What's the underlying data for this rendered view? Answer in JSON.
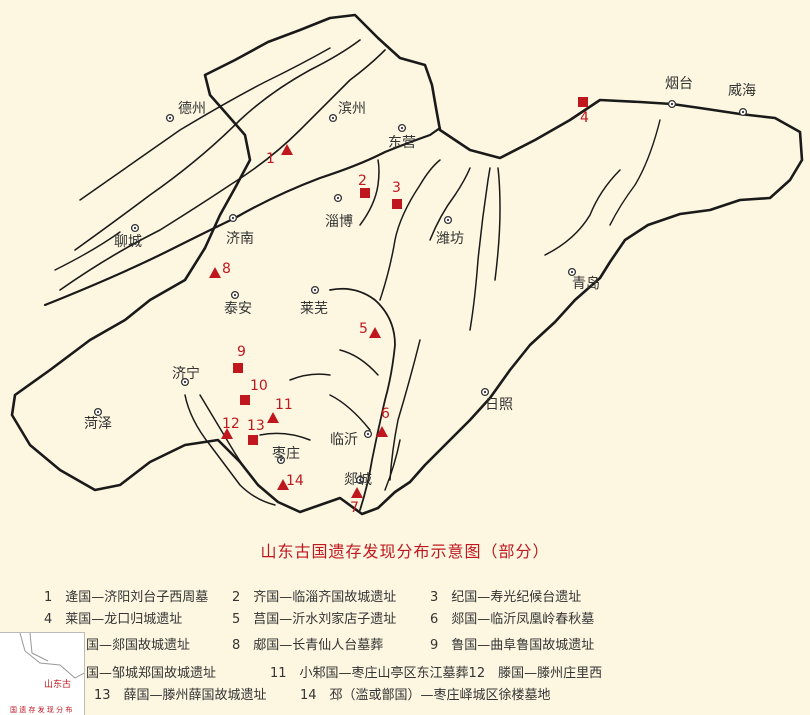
{
  "map": {
    "cities": [
      {
        "id": "dezhou",
        "name": "德州"
      },
      {
        "id": "binzhou",
        "name": "滨州"
      },
      {
        "id": "dongying",
        "name": "东营"
      },
      {
        "id": "yantai",
        "name": "烟台"
      },
      {
        "id": "weihai",
        "name": "威海"
      },
      {
        "id": "zibo",
        "name": "淄博"
      },
      {
        "id": "weifang",
        "name": "潍坊"
      },
      {
        "id": "liaocheng",
        "name": "聊城"
      },
      {
        "id": "jinan",
        "name": "济南"
      },
      {
        "id": "qingdao",
        "name": "青岛"
      },
      {
        "id": "taian",
        "name": "泰安"
      },
      {
        "id": "laiwu",
        "name": "莱芜"
      },
      {
        "id": "jining",
        "name": "济宁"
      },
      {
        "id": "heze",
        "name": "菏泽"
      },
      {
        "id": "rizhao",
        "name": "日照"
      },
      {
        "id": "linyi",
        "name": "临沂"
      },
      {
        "id": "zaozhuang",
        "name": "枣庄"
      },
      {
        "id": "tancheng",
        "name": "郯城"
      }
    ],
    "sites": [
      {
        "num": "1",
        "shape": "triangle"
      },
      {
        "num": "2",
        "shape": "square"
      },
      {
        "num": "3",
        "shape": "square"
      },
      {
        "num": "4",
        "shape": "square"
      },
      {
        "num": "5",
        "shape": "triangle"
      },
      {
        "num": "6",
        "shape": "triangle"
      },
      {
        "num": "7",
        "shape": "triangle"
      },
      {
        "num": "8",
        "shape": "triangle"
      },
      {
        "num": "9",
        "shape": "square"
      },
      {
        "num": "10",
        "shape": "square"
      },
      {
        "num": "11",
        "shape": "triangle"
      },
      {
        "num": "12",
        "shape": "triangle"
      },
      {
        "num": "13",
        "shape": "square"
      },
      {
        "num": "14",
        "shape": "triangle"
      }
    ],
    "colors": {
      "marker": "#c0171f",
      "line": "#1a1a1a",
      "background": "#fdf7e1"
    }
  },
  "title": "山东古国遗存发现分布示意图（部分）",
  "legend": [
    [
      "1　逄国—济阳刘台子西周墓",
      "2　齐国—临淄齐国故城遗址",
      "3　纪国—寿光纪候台遗址"
    ],
    [
      "4　莱国—龙口归城遗址",
      "5　莒国—沂水刘家店子遗址",
      "6　郯国—临沂凤凰岭春秋墓"
    ],
    [
      "国—郯国故城遗址",
      "8　郕国—长青仙人台墓葬",
      "9　鲁国—曲阜鲁国故城遗址"
    ],
    [
      "国—邹城郑国故城遗址",
      "11　小邾国—枣庄山亭区东江墓葬12　滕国—滕州庄里西"
    ],
    [
      "13　薛国—滕州薛国故城遗址",
      "14　邳（滥或鄫国）—枣庄峄城区徐楼墓地"
    ]
  ],
  "inset": {
    "label": "山东古",
    "sub": "国 遗 存 发 现 分 布"
  }
}
